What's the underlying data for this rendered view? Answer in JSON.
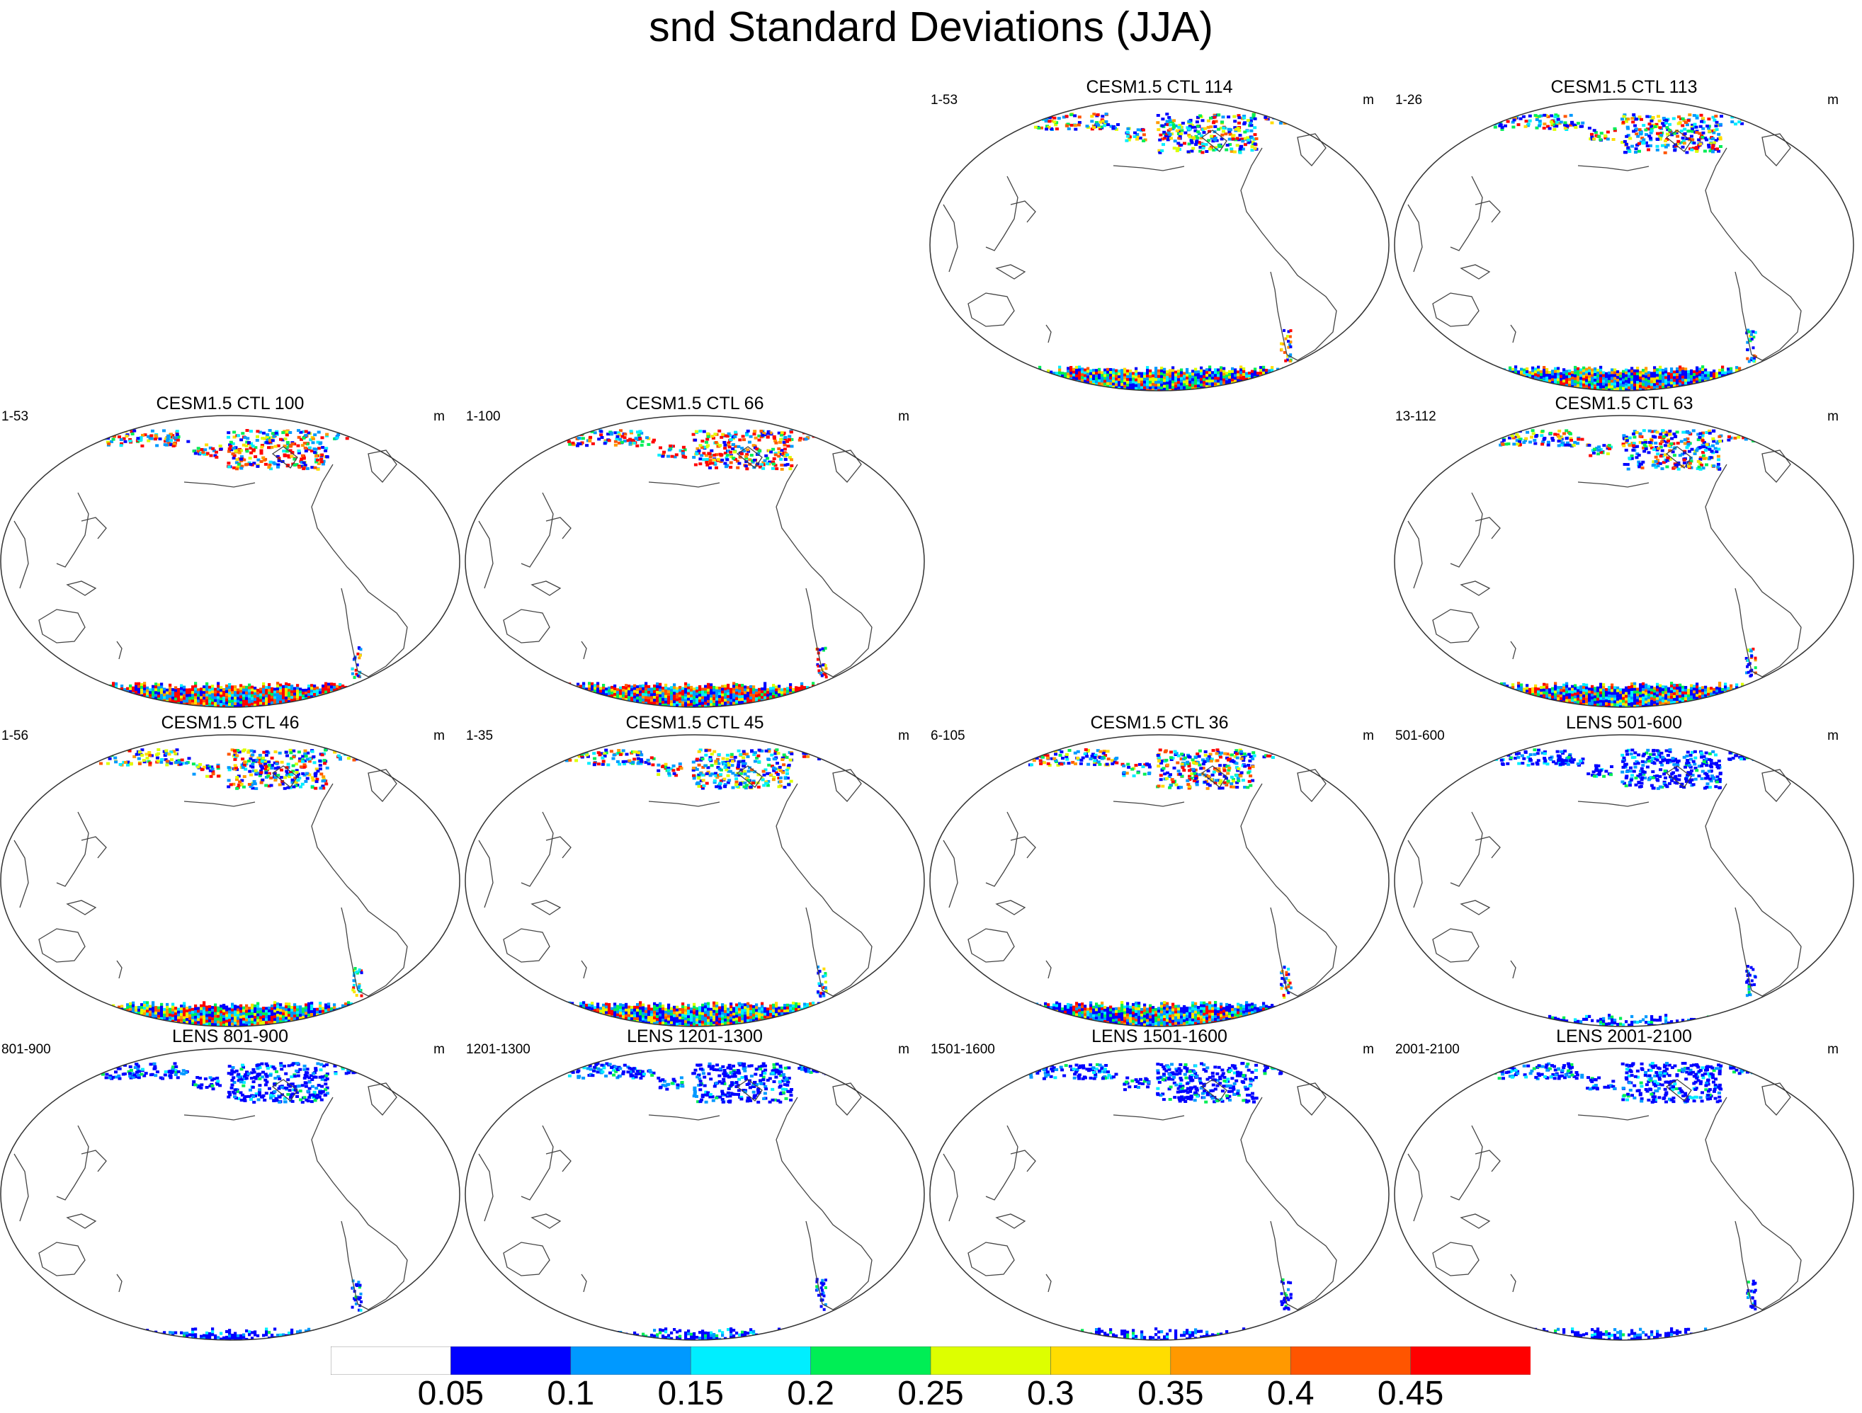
{
  "title": "snd Standard Deviations (JJA)",
  "panels": [
    {
      "id": "ctl114",
      "title": "CESM1.5 CTL 114",
      "left_label": "1-53",
      "units": "m",
      "pattern": "medium"
    },
    {
      "id": "ctl113",
      "title": "CESM1.5 CTL 113",
      "left_label": "1-26",
      "units": "m",
      "pattern": "medium2"
    },
    {
      "id": "ctl100",
      "title": "CESM1.5 CTL 100",
      "left_label": "1-53",
      "units": "m",
      "pattern": "high"
    },
    {
      "id": "ctl66",
      "title": "CESM1.5 CTL 66",
      "left_label": "1-100",
      "units": "m",
      "pattern": "high"
    },
    {
      "id": "ctl63",
      "title": "CESM1.5 CTL 63",
      "left_label": "13-112",
      "units": "m",
      "pattern": "medium3"
    },
    {
      "id": "ctl46",
      "title": "CESM1.5 CTL 46",
      "left_label": "1-56",
      "units": "m",
      "pattern": "medium"
    },
    {
      "id": "ctl45",
      "title": "CESM1.5 CTL 45",
      "left_label": "1-35",
      "units": "m",
      "pattern": "medium"
    },
    {
      "id": "ctl36",
      "title": "CESM1.5 CTL 36",
      "left_label": "6-105",
      "units": "m",
      "pattern": "medium2"
    },
    {
      "id": "lens501",
      "title": "LENS 501-600",
      "left_label": "501-600",
      "units": "m",
      "pattern": "low"
    },
    {
      "id": "lens801",
      "title": "LENS 801-900",
      "left_label": "801-900",
      "units": "m",
      "pattern": "low"
    },
    {
      "id": "lens1201",
      "title": "LENS 1201-1300",
      "left_label": "1201-1300",
      "units": "m",
      "pattern": "low"
    },
    {
      "id": "lens1501",
      "title": "LENS 1501-1600",
      "left_label": "1501-1600",
      "units": "m",
      "pattern": "low"
    },
    {
      "id": "lens2001",
      "title": "LENS 2001-2100",
      "left_label": "2001-2100",
      "units": "m",
      "pattern": "low"
    }
  ],
  "colorbar": {
    "colors": [
      "#ffffff",
      "#0000ff",
      "#0099ff",
      "#00eeff",
      "#00ee55",
      "#ddff00",
      "#ffdd00",
      "#ff9900",
      "#ff5500",
      "#ff0000"
    ],
    "labels": [
      "0.05",
      "0.1",
      "0.15",
      "0.2",
      "0.25",
      "0.3",
      "0.35",
      "0.4",
      "0.45"
    ]
  }
}
